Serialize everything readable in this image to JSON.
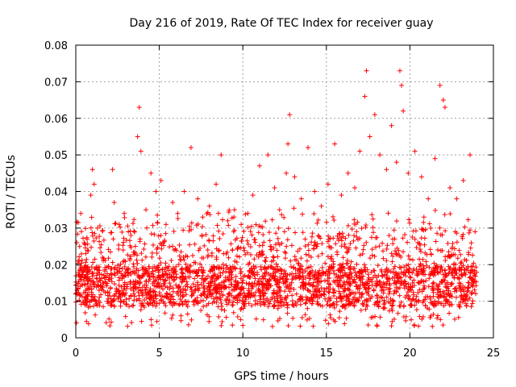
{
  "chart_data": {
    "type": "scatter",
    "title": "Day 216 of 2019, Rate Of TEC Index for receiver guay",
    "xlabel": "GPS time / hours",
    "ylabel": "ROTI / TECUs",
    "xlim": [
      0,
      25
    ],
    "ylim": [
      0,
      0.08
    ],
    "xticks": [
      0,
      5,
      10,
      15,
      20,
      25
    ],
    "xtick_labels": [
      "0",
      "5",
      "10",
      "15",
      "20",
      "25"
    ],
    "yticks": [
      0,
      0.01,
      0.02,
      0.03,
      0.04,
      0.05,
      0.06,
      0.07,
      0.08
    ],
    "ytick_labels": [
      "0",
      "0.01",
      "0.02",
      "0.03",
      "0.04",
      "0.05",
      "0.06",
      "0.07",
      "0.08"
    ],
    "grid": true,
    "marker": "+",
    "color": "#ff0000",
    "series": [
      {
        "name": "ROTI",
        "points": [
          [
            0.0,
            0.012
          ],
          [
            0.2,
            0.021
          ],
          [
            0.3,
            0.034
          ],
          [
            0.5,
            0.026
          ],
          [
            0.7,
            0.018
          ],
          [
            0.9,
            0.039
          ],
          [
            1.0,
            0.046
          ],
          [
            1.1,
            0.042
          ],
          [
            1.3,
            0.03
          ],
          [
            1.6,
            0.022
          ],
          [
            2.0,
            0.017
          ],
          [
            2.2,
            0.046
          ],
          [
            2.3,
            0.037
          ],
          [
            2.6,
            0.031
          ],
          [
            2.9,
            0.034
          ],
          [
            3.3,
            0.028
          ],
          [
            3.7,
            0.055
          ],
          [
            3.8,
            0.063
          ],
          [
            3.9,
            0.051
          ],
          [
            4.2,
            0.035
          ],
          [
            4.5,
            0.045
          ],
          [
            4.8,
            0.04
          ],
          [
            5.1,
            0.043
          ],
          [
            5.4,
            0.031
          ],
          [
            5.8,
            0.037
          ],
          [
            6.1,
            0.034
          ],
          [
            6.5,
            0.04
          ],
          [
            6.9,
            0.052
          ],
          [
            7.3,
            0.038
          ],
          [
            7.6,
            0.033
          ],
          [
            8.0,
            0.036
          ],
          [
            8.4,
            0.042
          ],
          [
            8.7,
            0.05
          ],
          [
            9.1,
            0.032
          ],
          [
            9.5,
            0.035
          ],
          [
            9.9,
            0.031
          ],
          [
            10.3,
            0.034
          ],
          [
            10.6,
            0.039
          ],
          [
            11.0,
            0.047
          ],
          [
            11.5,
            0.05
          ],
          [
            11.9,
            0.041
          ],
          [
            12.2,
            0.035
          ],
          [
            12.6,
            0.045
          ],
          [
            12.7,
            0.053
          ],
          [
            12.8,
            0.061
          ],
          [
            13.1,
            0.044
          ],
          [
            13.5,
            0.038
          ],
          [
            13.9,
            0.052
          ],
          [
            14.3,
            0.04
          ],
          [
            14.7,
            0.036
          ],
          [
            15.1,
            0.042
          ],
          [
            15.5,
            0.053
          ],
          [
            15.9,
            0.039
          ],
          [
            16.3,
            0.045
          ],
          [
            16.7,
            0.041
          ],
          [
            17.0,
            0.051
          ],
          [
            17.3,
            0.066
          ],
          [
            17.4,
            0.073
          ],
          [
            17.6,
            0.055
          ],
          [
            17.9,
            0.061
          ],
          [
            18.2,
            0.05
          ],
          [
            18.6,
            0.046
          ],
          [
            18.9,
            0.058
          ],
          [
            19.2,
            0.048
          ],
          [
            19.4,
            0.073
          ],
          [
            19.5,
            0.069
          ],
          [
            19.6,
            0.062
          ],
          [
            19.9,
            0.045
          ],
          [
            20.3,
            0.051
          ],
          [
            20.7,
            0.044
          ],
          [
            21.1,
            0.038
          ],
          [
            21.5,
            0.049
          ],
          [
            21.8,
            0.069
          ],
          [
            22.0,
            0.065
          ],
          [
            22.1,
            0.063
          ],
          [
            22.4,
            0.041
          ],
          [
            22.8,
            0.038
          ],
          [
            23.2,
            0.043
          ],
          [
            23.6,
            0.05
          ],
          [
            23.9,
            0.029
          ]
        ]
      }
    ]
  }
}
